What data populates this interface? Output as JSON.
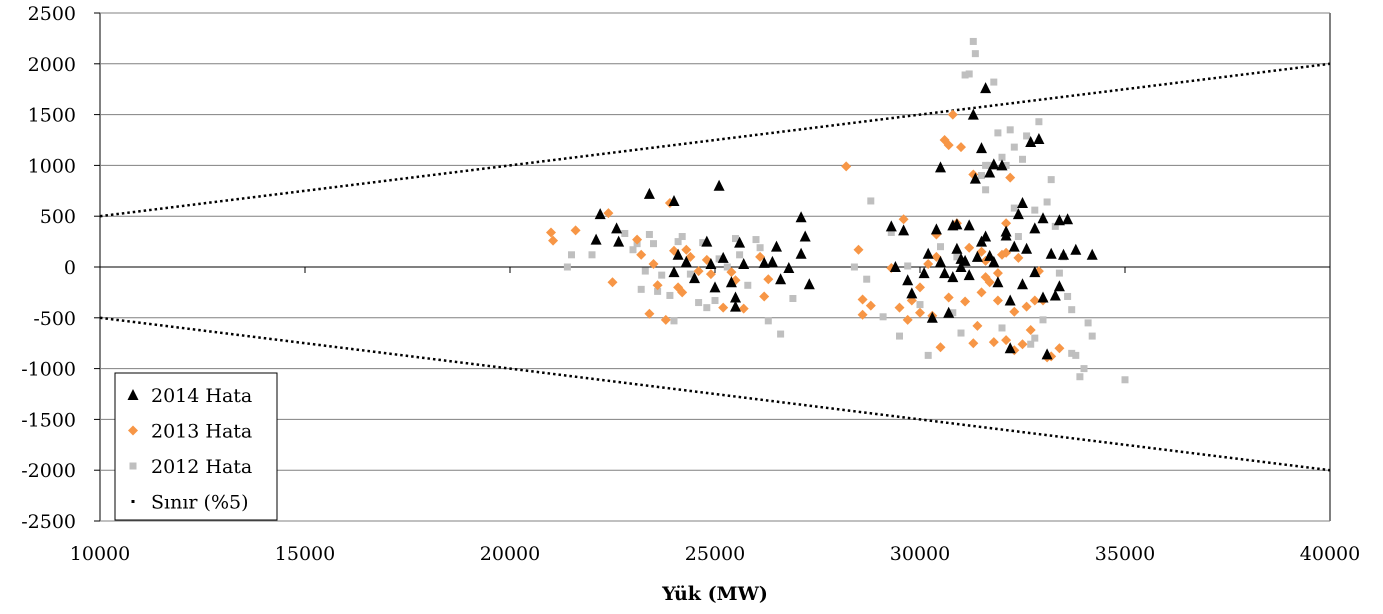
{
  "chart_data": {
    "type": "scatter",
    "title": "",
    "xlabel": "Yük (MW)",
    "ylabel": "",
    "xlim": [
      10000,
      40000
    ],
    "ylim": [
      -2500,
      2500
    ],
    "x_ticks": [
      "10000",
      "15000",
      "20000",
      "25000",
      "30000",
      "35000",
      "40000"
    ],
    "y_ticks": [
      "2500",
      "2000",
      "1500",
      "1000",
      "500",
      "0",
      "-500",
      "-1000",
      "-1500",
      "-2000",
      "-2500"
    ],
    "grid": "horizontal",
    "legend_position": "bottom-left",
    "series": [
      {
        "name": "2014 Hata",
        "marker": "triangle",
        "color": "#000000",
        "points": [
          [
            22200,
            520
          ],
          [
            22100,
            270
          ],
          [
            22600,
            380
          ],
          [
            22650,
            250
          ],
          [
            23400,
            720
          ],
          [
            24000,
            650
          ],
          [
            24100,
            120
          ],
          [
            24300,
            50
          ],
          [
            24000,
            -50
          ],
          [
            24500,
            -110
          ],
          [
            24800,
            250
          ],
          [
            24900,
            30
          ],
          [
            25000,
            -200
          ],
          [
            25100,
            800
          ],
          [
            25200,
            90
          ],
          [
            25400,
            -150
          ],
          [
            25500,
            -300
          ],
          [
            25600,
            240
          ],
          [
            25700,
            30
          ],
          [
            25500,
            -390
          ],
          [
            26200,
            40
          ],
          [
            26400,
            50
          ],
          [
            26500,
            200
          ],
          [
            26600,
            -120
          ],
          [
            26800,
            -10
          ],
          [
            27100,
            490
          ],
          [
            27200,
            300
          ],
          [
            27100,
            130
          ],
          [
            27300,
            -170
          ],
          [
            29300,
            400
          ],
          [
            29400,
            0
          ],
          [
            29600,
            360
          ],
          [
            29700,
            -130
          ],
          [
            29800,
            -260
          ],
          [
            30100,
            -60
          ],
          [
            30200,
            130
          ],
          [
            30300,
            -500
          ],
          [
            30400,
            370
          ],
          [
            30500,
            980
          ],
          [
            30600,
            -60
          ],
          [
            30700,
            -450
          ],
          [
            30800,
            410
          ],
          [
            30900,
            180
          ],
          [
            31000,
            80
          ],
          [
            31100,
            60
          ],
          [
            31200,
            410
          ],
          [
            31300,
            1500
          ],
          [
            31350,
            870
          ],
          [
            31400,
            100
          ],
          [
            31500,
            1170
          ],
          [
            31600,
            1760
          ],
          [
            31700,
            930
          ],
          [
            31800,
            1010
          ],
          [
            31600,
            300
          ],
          [
            31800,
            50
          ],
          [
            31900,
            -150
          ],
          [
            32000,
            1000
          ],
          [
            32100,
            350
          ],
          [
            32100,
            310
          ],
          [
            32200,
            -330
          ],
          [
            32200,
            -800
          ],
          [
            32300,
            200
          ],
          [
            32400,
            520
          ],
          [
            32500,
            630
          ],
          [
            32600,
            180
          ],
          [
            32700,
            1230
          ],
          [
            32800,
            380
          ],
          [
            32900,
            1260
          ],
          [
            33000,
            480
          ],
          [
            33000,
            -300
          ],
          [
            33100,
            -860
          ],
          [
            33200,
            130
          ],
          [
            33300,
            -280
          ],
          [
            33400,
            -190
          ],
          [
            33400,
            460
          ],
          [
            33500,
            120
          ],
          [
            33600,
            470
          ],
          [
            33800,
            170
          ],
          [
            34200,
            120
          ],
          [
            31000,
            0
          ],
          [
            31200,
            -80
          ],
          [
            30900,
            420
          ],
          [
            31500,
            250
          ],
          [
            30500,
            50
          ],
          [
            30800,
            -100
          ],
          [
            31700,
            110
          ],
          [
            32800,
            -50
          ],
          [
            32500,
            -170
          ]
        ]
      },
      {
        "name": "2013 Hata",
        "marker": "diamond",
        "color": "#f79646",
        "points": [
          [
            21000,
            340
          ],
          [
            21050,
            260
          ],
          [
            21600,
            360
          ],
          [
            22400,
            530
          ],
          [
            22500,
            -150
          ],
          [
            23100,
            270
          ],
          [
            23200,
            120
          ],
          [
            23400,
            -460
          ],
          [
            23500,
            30
          ],
          [
            23600,
            -180
          ],
          [
            23800,
            -520
          ],
          [
            23900,
            630
          ],
          [
            24000,
            160
          ],
          [
            24100,
            -200
          ],
          [
            24200,
            -250
          ],
          [
            24300,
            170
          ],
          [
            24400,
            100
          ],
          [
            24600,
            -40
          ],
          [
            24800,
            70
          ],
          [
            24900,
            -70
          ],
          [
            25200,
            -400
          ],
          [
            25400,
            -50
          ],
          [
            25500,
            -130
          ],
          [
            25700,
            -410
          ],
          [
            26100,
            100
          ],
          [
            26200,
            -290
          ],
          [
            26300,
            -120
          ],
          [
            28200,
            990
          ],
          [
            28500,
            170
          ],
          [
            28600,
            -320
          ],
          [
            28600,
            -470
          ],
          [
            28800,
            -380
          ],
          [
            29300,
            -10
          ],
          [
            29500,
            -400
          ],
          [
            29600,
            470
          ],
          [
            29700,
            -520
          ],
          [
            29800,
            -330
          ],
          [
            30000,
            -450
          ],
          [
            30200,
            30
          ],
          [
            30300,
            -480
          ],
          [
            30400,
            320
          ],
          [
            30500,
            -790
          ],
          [
            30600,
            1250
          ],
          [
            30700,
            1200
          ],
          [
            30800,
            1500
          ],
          [
            30900,
            430
          ],
          [
            31000,
            1180
          ],
          [
            31100,
            -340
          ],
          [
            31200,
            190
          ],
          [
            31300,
            -750
          ],
          [
            31300,
            910
          ],
          [
            31400,
            -580
          ],
          [
            31500,
            -250
          ],
          [
            31600,
            60
          ],
          [
            31700,
            -150
          ],
          [
            31800,
            -740
          ],
          [
            31900,
            -60
          ],
          [
            32000,
            120
          ],
          [
            32100,
            430
          ],
          [
            32100,
            -720
          ],
          [
            32200,
            880
          ],
          [
            32300,
            -440
          ],
          [
            32300,
            -820
          ],
          [
            32400,
            90
          ],
          [
            32500,
            -760
          ],
          [
            32600,
            -390
          ],
          [
            32700,
            -620
          ],
          [
            32800,
            -330
          ],
          [
            32900,
            -40
          ],
          [
            33000,
            -330
          ],
          [
            33100,
            -890
          ],
          [
            33200,
            -880
          ],
          [
            33400,
            -800
          ],
          [
            30000,
            -200
          ],
          [
            30700,
            -300
          ],
          [
            31500,
            150
          ],
          [
            32100,
            140
          ],
          [
            31900,
            -330
          ],
          [
            31600,
            -100
          ],
          [
            30400,
            100
          ]
        ]
      },
      {
        "name": "2012 Hata",
        "marker": "square",
        "color": "#bfbfbf",
        "points": [
          [
            21400,
            0
          ],
          [
            21500,
            120
          ],
          [
            22000,
            120
          ],
          [
            22800,
            330
          ],
          [
            23000,
            170
          ],
          [
            23100,
            230
          ],
          [
            23200,
            -220
          ],
          [
            23300,
            -40
          ],
          [
            23400,
            320
          ],
          [
            23500,
            230
          ],
          [
            23600,
            -240
          ],
          [
            23700,
            -80
          ],
          [
            23900,
            -280
          ],
          [
            24000,
            -530
          ],
          [
            24100,
            250
          ],
          [
            24200,
            300
          ],
          [
            24400,
            -70
          ],
          [
            24600,
            -350
          ],
          [
            24700,
            240
          ],
          [
            24800,
            -400
          ],
          [
            25000,
            -330
          ],
          [
            25100,
            80
          ],
          [
            25300,
            0
          ],
          [
            25500,
            280
          ],
          [
            25600,
            120
          ],
          [
            25800,
            -180
          ],
          [
            26000,
            270
          ],
          [
            26100,
            190
          ],
          [
            26300,
            -530
          ],
          [
            26600,
            -660
          ],
          [
            26900,
            -310
          ],
          [
            28400,
            0
          ],
          [
            28700,
            -120
          ],
          [
            28800,
            650
          ],
          [
            29100,
            -490
          ],
          [
            29300,
            340
          ],
          [
            29500,
            -680
          ],
          [
            29700,
            10
          ],
          [
            30000,
            -370
          ],
          [
            30200,
            -870
          ],
          [
            30500,
            200
          ],
          [
            30800,
            -450
          ],
          [
            31000,
            -650
          ],
          [
            31100,
            1890
          ],
          [
            31200,
            1900
          ],
          [
            31300,
            2220
          ],
          [
            31350,
            2100
          ],
          [
            31500,
            900
          ],
          [
            31600,
            760
          ],
          [
            31700,
            1000
          ],
          [
            31800,
            1820
          ],
          [
            31900,
            1320
          ],
          [
            32000,
            1080
          ],
          [
            32100,
            1000
          ],
          [
            32200,
            1350
          ],
          [
            32300,
            1180
          ],
          [
            32400,
            300
          ],
          [
            32500,
            1060
          ],
          [
            32600,
            1290
          ],
          [
            32700,
            -760
          ],
          [
            32800,
            560
          ],
          [
            32900,
            1430
          ],
          [
            33000,
            -520
          ],
          [
            33100,
            640
          ],
          [
            33200,
            860
          ],
          [
            33300,
            400
          ],
          [
            33400,
            -60
          ],
          [
            33500,
            100
          ],
          [
            33600,
            -290
          ],
          [
            33700,
            -420
          ],
          [
            33700,
            -850
          ],
          [
            33800,
            -870
          ],
          [
            33900,
            -1080
          ],
          [
            34000,
            -1000
          ],
          [
            34100,
            -550
          ],
          [
            34200,
            -680
          ],
          [
            35000,
            -1110
          ],
          [
            32300,
            580
          ],
          [
            31600,
            1000
          ],
          [
            30900,
            100
          ],
          [
            32800,
            -700
          ],
          [
            32000,
            -600
          ]
        ]
      },
      {
        "name": "Sınır (%5)",
        "marker": "dotted-line",
        "color": "#000000",
        "lines": [
          [
            [
              10000,
              500
            ],
            [
              40000,
              2000
            ]
          ],
          [
            [
              10000,
              -500
            ],
            [
              40000,
              -2000
            ]
          ]
        ]
      }
    ]
  }
}
